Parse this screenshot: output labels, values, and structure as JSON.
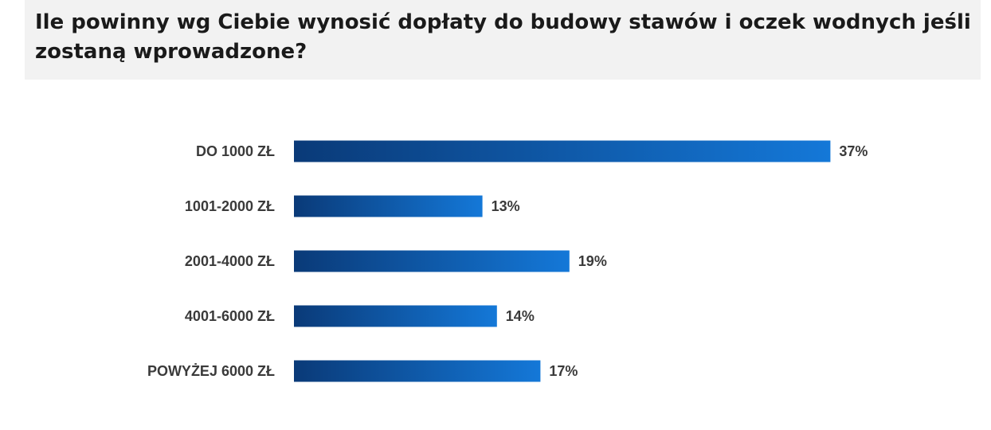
{
  "chart_data": {
    "type": "bar",
    "orientation": "horizontal",
    "title": "Ile powinny wg Ciebie wynosić dopłaty do budowy stawów i oczek wodnych jeśli zostaną wprowadzone?",
    "categories": [
      "DO 1000 ZŁ",
      "1001-2000 ZŁ",
      "2001-4000 ZŁ",
      "4001-6000 ZŁ",
      "POWYŻEJ 6000 ZŁ"
    ],
    "values": [
      37,
      13,
      19,
      14,
      17
    ],
    "value_labels": [
      "37%",
      "13%",
      "19%",
      "14%",
      "17%"
    ],
    "unit": "%",
    "xlabel": "",
    "ylabel": "",
    "grid": false,
    "bar_color_start": "#0a3a78",
    "bar_color_end": "#1478d8",
    "title_background": "#f2f2f2"
  }
}
